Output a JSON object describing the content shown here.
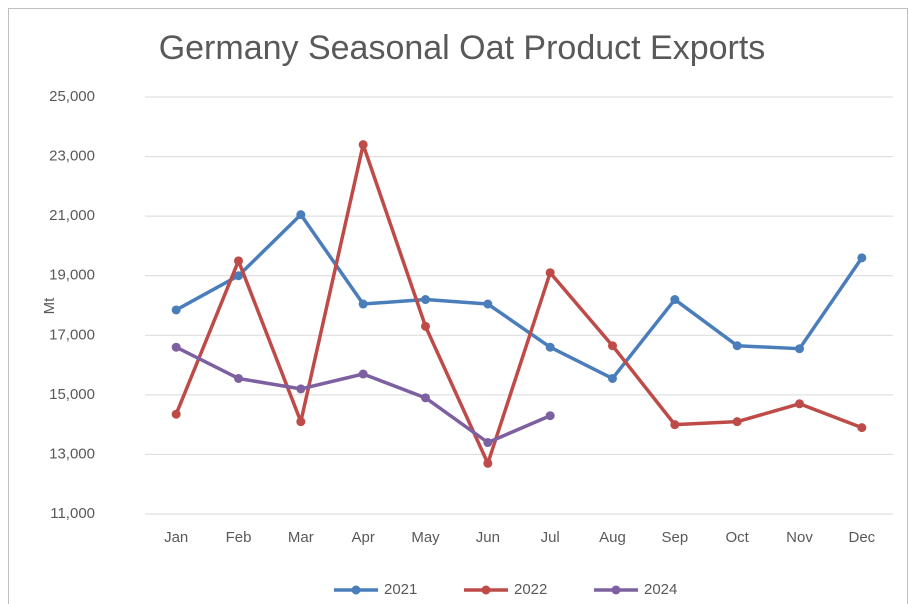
{
  "chart_data": {
    "type": "line",
    "title": "Germany Seasonal Oat Product Exports",
    "y_label": "Mt",
    "categories": [
      "Jan",
      "Feb",
      "Mar",
      "Apr",
      "May",
      "Jun",
      "Jul",
      "Aug",
      "Sep",
      "Oct",
      "Nov",
      "Dec"
    ],
    "series": [
      {
        "name": "2021",
        "color": "#4a7ebb",
        "values": [
          17850,
          19000,
          21050,
          18050,
          18200,
          18050,
          16600,
          15550,
          18200,
          16650,
          16550,
          19600
        ]
      },
      {
        "name": "2022",
        "color": "#be4b48",
        "values": [
          14350,
          19500,
          14100,
          23400,
          17300,
          12700,
          19100,
          16650,
          14000,
          14100,
          14700,
          13900
        ]
      },
      {
        "name": "2024",
        "color": "#7d60a0",
        "values": [
          16600,
          15550,
          15200,
          15700,
          14900,
          13400,
          14300,
          null,
          null,
          null,
          null,
          null
        ]
      }
    ],
    "ylim": [
      11000,
      25000
    ],
    "yticks": [
      {
        "value": 11000,
        "label": "11,000"
      },
      {
        "value": 13000,
        "label": "13,000"
      },
      {
        "value": 15000,
        "label": "15,000"
      },
      {
        "value": 17000,
        "label": "17,000"
      },
      {
        "value": 19000,
        "label": "19,000"
      },
      {
        "value": 21000,
        "label": "21,000"
      },
      {
        "value": 23000,
        "label": "23,000"
      },
      {
        "value": 25000,
        "label": "25,000"
      }
    ],
    "grid": true,
    "legend": "bottom"
  }
}
